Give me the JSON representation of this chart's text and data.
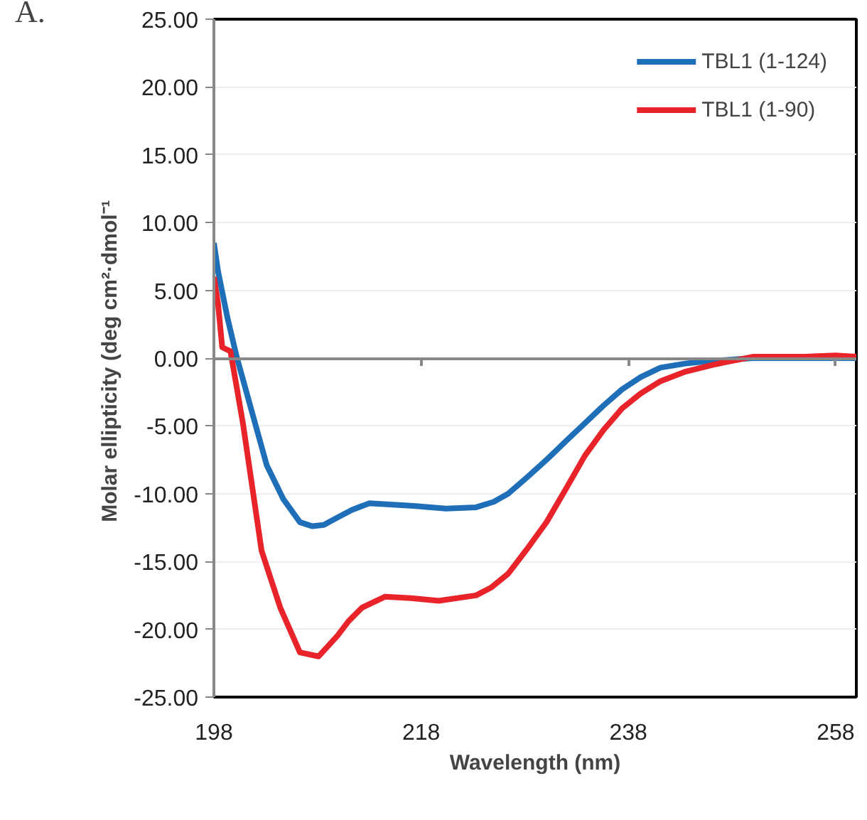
{
  "chart_data": {
    "type": "line",
    "xlabel": "Wavelength (nm)",
    "ylabel": "Molar ellipticity  (deg cm²·dmol⁻¹",
    "annotations": [
      "A."
    ],
    "xlim": [
      198,
      260
    ],
    "xticks": [
      198,
      218,
      238,
      258
    ],
    "ylim": [
      -25,
      25
    ],
    "yticks": [
      {
        "value": -25,
        "label": "-25.00"
      },
      {
        "value": -20,
        "label": "-20.00"
      },
      {
        "value": -15,
        "label": "-15.00"
      },
      {
        "value": -10,
        "label": "-10.00"
      },
      {
        "value": -5,
        "label": "-5.00"
      },
      {
        "value": 0,
        "label": "0.00"
      },
      {
        "value": 5,
        "label": "5.00"
      },
      {
        "value": 10,
        "label": "10.00"
      },
      {
        "value": 15,
        "label": "15.00"
      },
      {
        "value": 20,
        "label": "20.00"
      },
      {
        "value": 25,
        "label": "25.00"
      }
    ],
    "grid": "y",
    "legend": "top right",
    "line_style": "solid",
    "series": [
      {
        "name": "TBL1 (1-124)",
        "color": "#1f6fb8",
        "x": [
          198,
          198.4,
          199.3,
          200.2,
          201.5,
          203.1,
          204.7,
          206.3,
          207.5,
          208.6,
          209.8,
          211.3,
          213,
          215,
          217.3,
          220.4,
          223.3,
          225,
          226.4,
          228.2,
          230.1,
          232,
          233.8,
          235.6,
          237.4,
          239.2,
          241.1,
          243.5,
          246.1,
          250,
          255,
          260
        ],
        "values": [
          8.5,
          6.4,
          3,
          0.1,
          -3.5,
          -7.9,
          -10.4,
          -12.1,
          -12.4,
          -12.3,
          -11.8,
          -11.2,
          -10.7,
          -10.8,
          -10.9,
          -11.1,
          -11,
          -10.6,
          -10,
          -8.8,
          -7.5,
          -6.1,
          -4.8,
          -3.5,
          -2.3,
          -1.4,
          -0.7,
          -0.4,
          -0.2,
          0,
          0,
          0
        ]
      },
      {
        "name": "TBL1 (1-90)",
        "color": "#e8232a",
        "x": [
          198,
          198.4,
          198.8,
          199.6,
          200.8,
          201.7,
          202.6,
          204.4,
          206.3,
          208.1,
          209.9,
          211,
          212.3,
          214.5,
          217,
          219.7,
          223.3,
          224.8,
          226.4,
          228.2,
          230.1,
          232,
          233.8,
          235.6,
          237.4,
          239.2,
          241.1,
          243.5,
          246.1,
          250,
          255,
          258,
          260
        ],
        "values": [
          6,
          4,
          0.8,
          0.5,
          -4.8,
          -9.5,
          -14.2,
          -18.4,
          -21.7,
          -22,
          -20.5,
          -19.4,
          -18.4,
          -17.6,
          -17.7,
          -17.9,
          -17.5,
          -16.9,
          -15.9,
          -14.1,
          -12.1,
          -9.6,
          -7.2,
          -5.3,
          -3.7,
          -2.6,
          -1.7,
          -1,
          -0.5,
          0.1,
          0.1,
          0.2,
          0.1
        ]
      }
    ]
  }
}
